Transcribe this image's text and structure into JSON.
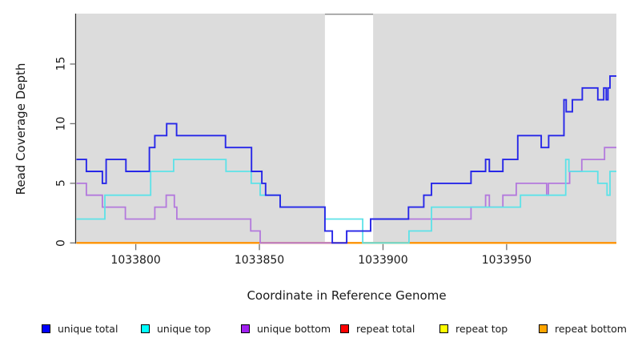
{
  "title_x": "Coordinate in Reference Genome",
  "title_y": "Read Coverage Depth",
  "plot": {
    "bg_color": "#DCDCDC",
    "masked_band_color": "#FFFFFF",
    "axis_color": "#2f2f2f",
    "tick_color": "#6e6e6e",
    "band_top_line_color": "#909090"
  },
  "chart_data": {
    "type": "line",
    "step_mode": "post",
    "x_range": [
      1033776,
      1033994.4
    ],
    "y_range": [
      0,
      19.23
    ],
    "xlabel": "Coordinate in Reference Genome",
    "ylabel": "Read Coverage Depth",
    "grid": false,
    "x_ticks": [
      {
        "coord": 1033800,
        "label": "1033800"
      },
      {
        "coord": 1033850,
        "label": "1033850"
      },
      {
        "coord": 1033900,
        "label": "1033900"
      },
      {
        "coord": 1033950,
        "label": "1033950"
      }
    ],
    "y_ticks": [
      {
        "value": 0,
        "label": "0"
      },
      {
        "value": 5,
        "label": "5"
      },
      {
        "value": 10,
        "label": "10"
      },
      {
        "value": 15,
        "label": "15"
      }
    ],
    "masked_region": {
      "from": 1033876.5,
      "to": 1033896
    },
    "series": [
      {
        "name": "repeat total",
        "color": "#EE0000",
        "width": 1.8,
        "steps": [
          [
            1033776,
            0
          ]
        ]
      },
      {
        "name": "repeat top",
        "color": "#FFEE00",
        "width": 1.8,
        "steps": [
          [
            1033776,
            0
          ]
        ]
      },
      {
        "name": "repeat bottom",
        "color": "#FF9100",
        "width": 2,
        "steps": [
          [
            1033776,
            0
          ]
        ]
      },
      {
        "name": "unique bottom",
        "color": "#B379DD",
        "width": 1.8,
        "steps": [
          [
            1033776,
            5
          ],
          [
            1033780,
            4
          ],
          [
            1033786.5,
            3
          ],
          [
            1033795.8,
            2
          ],
          [
            1033807.7,
            3
          ],
          [
            1033812.3,
            4
          ],
          [
            1033815.6,
            3
          ],
          [
            1033816.6,
            2
          ],
          [
            1033846.5,
            1
          ],
          [
            1033850.3,
            0
          ],
          [
            1033885.3,
            1
          ],
          [
            1033895,
            2
          ],
          [
            1033935.6,
            3
          ],
          [
            1033941.5,
            4
          ],
          [
            1033943,
            3
          ],
          [
            1033948.5,
            4
          ],
          [
            1033953.9,
            5
          ],
          [
            1033966.2,
            4
          ],
          [
            1033966.9,
            5
          ],
          [
            1033975.5,
            6
          ],
          [
            1033980.4,
            7
          ],
          [
            1033989.6,
            8
          ]
        ]
      },
      {
        "name": "unique top",
        "color": "#5CE2E8",
        "width": 1.8,
        "steps": [
          [
            1033776,
            2
          ],
          [
            1033787.5,
            4
          ],
          [
            1033806,
            6
          ],
          [
            1033815.3,
            7
          ],
          [
            1033836.5,
            6
          ],
          [
            1033846.7,
            5
          ],
          [
            1033850.3,
            4
          ],
          [
            1033858.4,
            3
          ],
          [
            1033876.5,
            2
          ],
          [
            1033891.8,
            0
          ],
          [
            1033910.5,
            1
          ],
          [
            1033919.6,
            3
          ],
          [
            1033955.6,
            4
          ],
          [
            1033973.9,
            7
          ],
          [
            1033975.2,
            6
          ],
          [
            1033986.9,
            5
          ],
          [
            1033990.6,
            4
          ],
          [
            1033991.8,
            6
          ]
        ]
      },
      {
        "name": "unique total",
        "color": "#2727E8",
        "width": 1.9,
        "steps": [
          [
            1033776,
            7
          ],
          [
            1033780,
            6
          ],
          [
            1033786.5,
            5
          ],
          [
            1033788,
            7
          ],
          [
            1033796,
            6
          ],
          [
            1033805.5,
            8
          ],
          [
            1033807.7,
            9
          ],
          [
            1033812.5,
            10
          ],
          [
            1033816.5,
            9
          ],
          [
            1033836.3,
            8
          ],
          [
            1033846.8,
            6
          ],
          [
            1033851,
            5
          ],
          [
            1033852.5,
            4
          ],
          [
            1033858.4,
            3
          ],
          [
            1033876.5,
            1
          ],
          [
            1033879.5,
            0
          ],
          [
            1033885.3,
            1
          ],
          [
            1033895,
            2
          ],
          [
            1033910.3,
            3
          ],
          [
            1033916.5,
            4
          ],
          [
            1033919.6,
            5
          ],
          [
            1033935.6,
            6
          ],
          [
            1033941.5,
            7
          ],
          [
            1033943,
            6
          ],
          [
            1033948.5,
            7
          ],
          [
            1033954.5,
            9
          ],
          [
            1033964,
            8
          ],
          [
            1033967,
            9
          ],
          [
            1033973.2,
            12
          ],
          [
            1033974.1,
            11
          ],
          [
            1033976.6,
            12
          ],
          [
            1033980.6,
            13
          ],
          [
            1033986.9,
            12
          ],
          [
            1033989.3,
            13
          ],
          [
            1033990.3,
            12
          ],
          [
            1033991,
            13
          ],
          [
            1033991.8,
            14
          ]
        ]
      }
    ]
  },
  "legend": {
    "items": [
      {
        "label": "unique total",
        "color": "#0000FF"
      },
      {
        "label": "unique top",
        "color": "#00FFFF"
      },
      {
        "label": "unique bottom",
        "color": "#A020F0"
      },
      {
        "label": "repeat total",
        "color": "#FF0000"
      },
      {
        "label": "repeat top",
        "color": "#FFFF00"
      },
      {
        "label": "repeat bottom",
        "color": "#FFA500"
      }
    ]
  }
}
